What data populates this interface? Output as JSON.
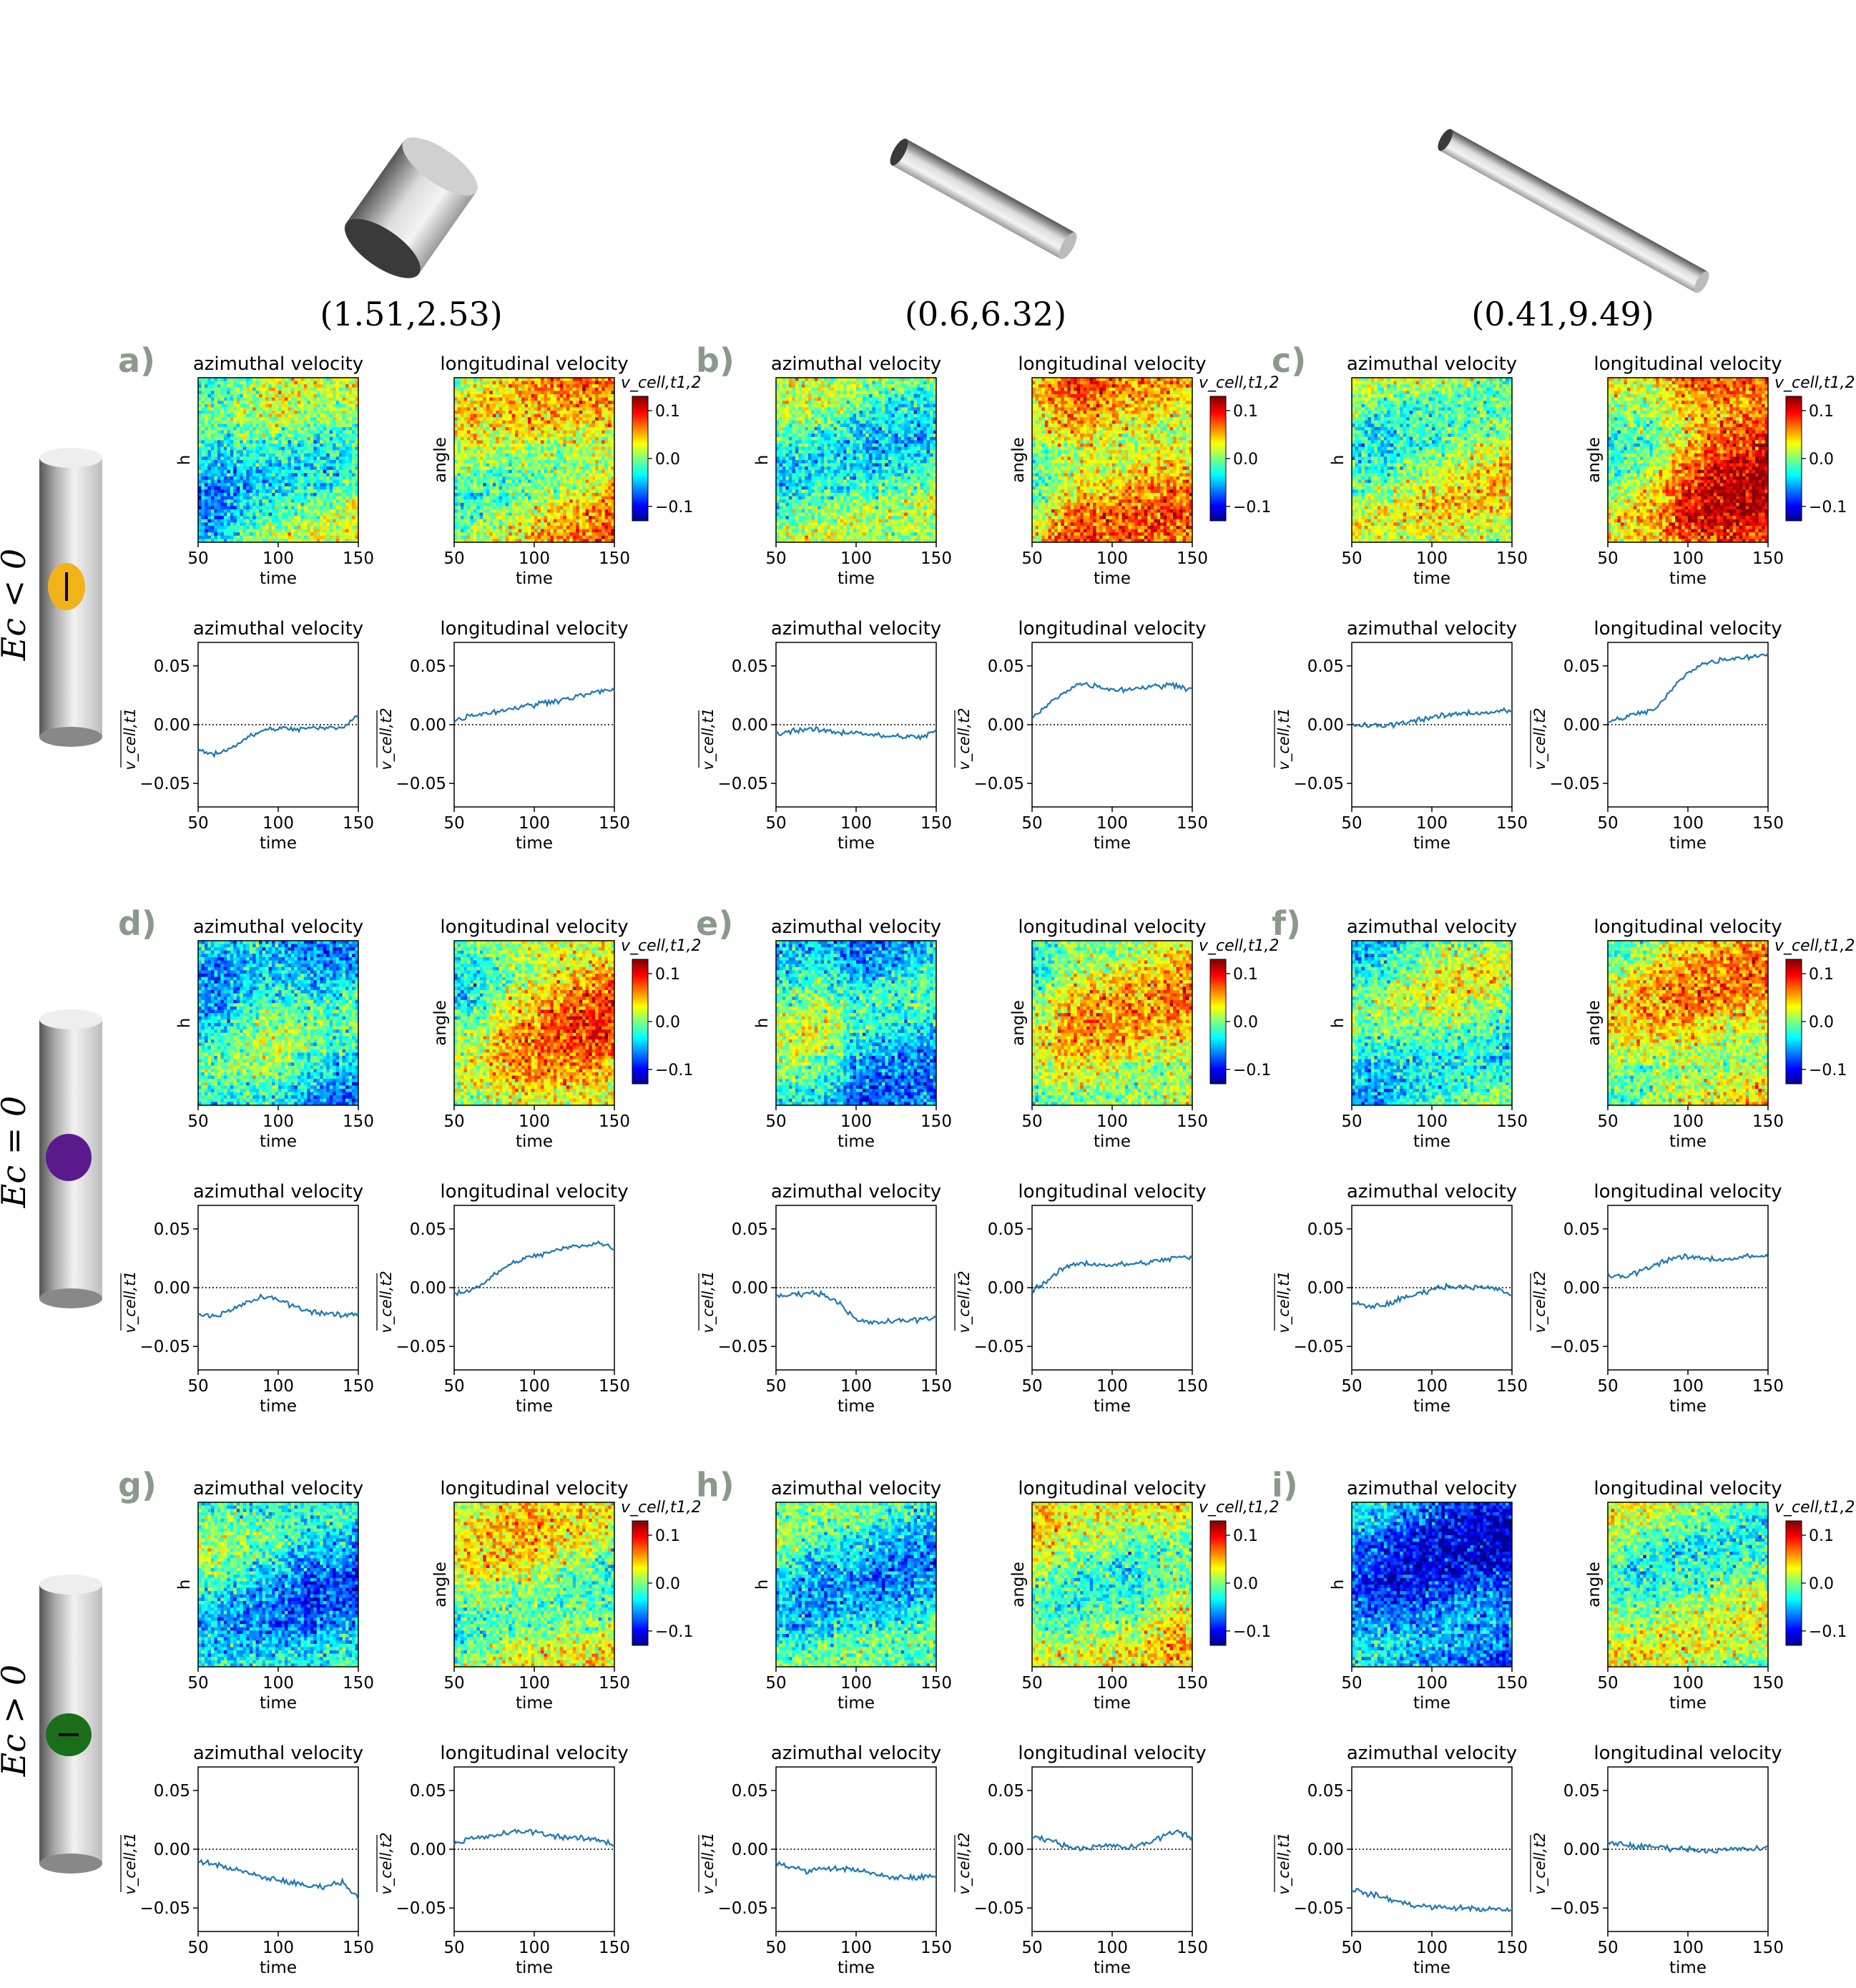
{
  "geometry_labels": [
    "(1.51,2.53)",
    "(0.6,6.32)",
    "(0.41,9.49)"
  ],
  "row_labels": [
    "Ec < 0",
    "Ec = 0",
    "Ec > 0"
  ],
  "panel_letters": [
    "a)",
    "b)",
    "c)",
    "d)",
    "e)",
    "f)",
    "g)",
    "h)",
    "i)"
  ],
  "colors": {
    "line": "#1f77b4",
    "letters": "#8a9a8a",
    "dot_ec_neg": "#f2b21a",
    "dot_ec_zero": "#5a1a8c",
    "dot_ec_pos": "#1a6e1a"
  },
  "chart_data": {
    "type": "heatmap+line",
    "titles": {
      "azimuthal": "azimuthal velocity",
      "longitudinal": "longitudinal velocity"
    },
    "heatmap": {
      "xlabel": "time",
      "ylabel_azimuthal": "h",
      "ylabel_longitudinal": "angle",
      "xticks": [
        50,
        100,
        150
      ],
      "xlim": [
        50,
        150
      ],
      "colormap": "jet",
      "clim": [
        -0.13,
        0.13
      ],
      "colorbar_label": "v_cell,t1,2",
      "colorbar_ticks": [
        "0.1",
        "0.0",
        "−0.1"
      ]
    },
    "line": {
      "xlabel": "time",
      "ylabel_azimuthal": "v_cell,t1",
      "ylabel_longitudinal": "v_cell,t2",
      "xticks": [
        50,
        100,
        150
      ],
      "yticks": [
        "0.05",
        "0.00",
        "−0.05"
      ],
      "xlim": [
        50,
        150
      ],
      "ylim": [
        -0.07,
        0.07
      ],
      "zero_line": "dotted"
    },
    "panels": [
      {
        "id": "a",
        "az_mean": [
          [
            50,
            -0.022
          ],
          [
            60,
            -0.025
          ],
          [
            70,
            -0.02
          ],
          [
            80,
            -0.012
          ],
          [
            90,
            -0.005
          ],
          [
            100,
            -0.003
          ],
          [
            110,
            -0.004
          ],
          [
            120,
            -0.003
          ],
          [
            130,
            -0.003
          ],
          [
            140,
            -0.002
          ],
          [
            150,
            0.008
          ]
        ],
        "lo_mean": [
          [
            50,
            0.003
          ],
          [
            60,
            0.008
          ],
          [
            70,
            0.01
          ],
          [
            80,
            0.012
          ],
          [
            90,
            0.015
          ],
          [
            100,
            0.017
          ],
          [
            110,
            0.02
          ],
          [
            120,
            0.022
          ],
          [
            130,
            0.025
          ],
          [
            140,
            0.028
          ],
          [
            150,
            0.03
          ]
        ]
      },
      {
        "id": "b",
        "az_mean": [
          [
            50,
            -0.008
          ],
          [
            60,
            -0.005
          ],
          [
            70,
            -0.004
          ],
          [
            80,
            -0.005
          ],
          [
            90,
            -0.007
          ],
          [
            100,
            -0.006
          ],
          [
            110,
            -0.009
          ],
          [
            120,
            -0.01
          ],
          [
            130,
            -0.01
          ],
          [
            140,
            -0.011
          ],
          [
            150,
            -0.005
          ]
        ],
        "lo_mean": [
          [
            50,
            0.005
          ],
          [
            60,
            0.017
          ],
          [
            70,
            0.028
          ],
          [
            80,
            0.035
          ],
          [
            90,
            0.033
          ],
          [
            100,
            0.03
          ],
          [
            110,
            0.03
          ],
          [
            120,
            0.032
          ],
          [
            130,
            0.033
          ],
          [
            140,
            0.034
          ],
          [
            150,
            0.03
          ]
        ]
      },
      {
        "id": "c",
        "az_mean": [
          [
            50,
            0.0
          ],
          [
            60,
            -0.001
          ],
          [
            70,
            -0.001
          ],
          [
            80,
            0.001
          ],
          [
            90,
            0.004
          ],
          [
            100,
            0.006
          ],
          [
            110,
            0.008
          ],
          [
            120,
            0.01
          ],
          [
            130,
            0.01
          ],
          [
            140,
            0.011
          ],
          [
            150,
            0.012
          ]
        ],
        "lo_mean": [
          [
            50,
            0.002
          ],
          [
            60,
            0.006
          ],
          [
            70,
            0.01
          ],
          [
            80,
            0.013
          ],
          [
            90,
            0.03
          ],
          [
            100,
            0.045
          ],
          [
            110,
            0.052
          ],
          [
            120,
            0.055
          ],
          [
            130,
            0.057
          ],
          [
            140,
            0.058
          ],
          [
            150,
            0.06
          ]
        ]
      },
      {
        "id": "d",
        "az_mean": [
          [
            50,
            -0.022
          ],
          [
            60,
            -0.024
          ],
          [
            70,
            -0.02
          ],
          [
            80,
            -0.013
          ],
          [
            90,
            -0.008
          ],
          [
            100,
            -0.01
          ],
          [
            110,
            -0.016
          ],
          [
            120,
            -0.02
          ],
          [
            130,
            -0.022
          ],
          [
            140,
            -0.024
          ],
          [
            150,
            -0.022
          ]
        ],
        "lo_mean": [
          [
            50,
            -0.005
          ],
          [
            60,
            -0.002
          ],
          [
            70,
            0.005
          ],
          [
            80,
            0.016
          ],
          [
            90,
            0.023
          ],
          [
            100,
            0.027
          ],
          [
            110,
            0.03
          ],
          [
            120,
            0.034
          ],
          [
            130,
            0.036
          ],
          [
            140,
            0.038
          ],
          [
            150,
            0.034
          ]
        ]
      },
      {
        "id": "e",
        "az_mean": [
          [
            50,
            -0.008
          ],
          [
            60,
            -0.006
          ],
          [
            70,
            -0.004
          ],
          [
            80,
            -0.006
          ],
          [
            90,
            -0.013
          ],
          [
            100,
            -0.028
          ],
          [
            110,
            -0.03
          ],
          [
            120,
            -0.029
          ],
          [
            130,
            -0.028
          ],
          [
            140,
            -0.027
          ],
          [
            150,
            -0.025
          ]
        ],
        "lo_mean": [
          [
            50,
            -0.002
          ],
          [
            60,
            0.006
          ],
          [
            70,
            0.017
          ],
          [
            80,
            0.021
          ],
          [
            90,
            0.02
          ],
          [
            100,
            0.019
          ],
          [
            110,
            0.02
          ],
          [
            120,
            0.021
          ],
          [
            130,
            0.023
          ],
          [
            140,
            0.026
          ],
          [
            150,
            0.025
          ]
        ]
      },
      {
        "id": "f",
        "az_mean": [
          [
            50,
            -0.013
          ],
          [
            60,
            -0.016
          ],
          [
            70,
            -0.015
          ],
          [
            80,
            -0.01
          ],
          [
            90,
            -0.006
          ],
          [
            100,
            -0.001
          ],
          [
            110,
            0.001
          ],
          [
            120,
            0.001
          ],
          [
            130,
            0.0
          ],
          [
            140,
            -0.001
          ],
          [
            150,
            -0.006
          ]
        ],
        "lo_mean": [
          [
            50,
            0.01
          ],
          [
            60,
            0.009
          ],
          [
            70,
            0.014
          ],
          [
            80,
            0.02
          ],
          [
            90,
            0.025
          ],
          [
            100,
            0.026
          ],
          [
            110,
            0.025
          ],
          [
            120,
            0.024
          ],
          [
            130,
            0.025
          ],
          [
            140,
            0.027
          ],
          [
            150,
            0.026
          ]
        ]
      },
      {
        "id": "g",
        "az_mean": [
          [
            50,
            -0.01
          ],
          [
            60,
            -0.013
          ],
          [
            70,
            -0.016
          ],
          [
            80,
            -0.02
          ],
          [
            90,
            -0.024
          ],
          [
            100,
            -0.026
          ],
          [
            110,
            -0.029
          ],
          [
            120,
            -0.032
          ],
          [
            130,
            -0.031
          ],
          [
            140,
            -0.028
          ],
          [
            150,
            -0.041
          ]
        ],
        "lo_mean": [
          [
            50,
            0.005
          ],
          [
            60,
            0.009
          ],
          [
            70,
            0.01
          ],
          [
            80,
            0.013
          ],
          [
            90,
            0.015
          ],
          [
            100,
            0.015
          ],
          [
            110,
            0.012
          ],
          [
            120,
            0.01
          ],
          [
            130,
            0.009
          ],
          [
            140,
            0.008
          ],
          [
            150,
            0.004
          ]
        ]
      },
      {
        "id": "h",
        "az_mean": [
          [
            50,
            -0.012
          ],
          [
            60,
            -0.015
          ],
          [
            70,
            -0.019
          ],
          [
            80,
            -0.016
          ],
          [
            90,
            -0.017
          ],
          [
            100,
            -0.017
          ],
          [
            110,
            -0.021
          ],
          [
            120,
            -0.024
          ],
          [
            130,
            -0.024
          ],
          [
            140,
            -0.024
          ],
          [
            150,
            -0.023
          ]
        ],
        "lo_mean": [
          [
            50,
            0.01
          ],
          [
            60,
            0.009
          ],
          [
            70,
            0.003
          ],
          [
            80,
            0.001
          ],
          [
            90,
            0.002
          ],
          [
            100,
            0.003
          ],
          [
            110,
            0.001
          ],
          [
            120,
            0.004
          ],
          [
            130,
            0.01
          ],
          [
            140,
            0.016
          ],
          [
            150,
            0.01
          ]
        ]
      },
      {
        "id": "i",
        "az_mean": [
          [
            50,
            -0.034
          ],
          [
            60,
            -0.038
          ],
          [
            70,
            -0.041
          ],
          [
            80,
            -0.045
          ],
          [
            90,
            -0.048
          ],
          [
            100,
            -0.049
          ],
          [
            110,
            -0.05
          ],
          [
            120,
            -0.05
          ],
          [
            130,
            -0.051
          ],
          [
            140,
            -0.051
          ],
          [
            150,
            -0.053
          ]
        ],
        "lo_mean": [
          [
            50,
            0.006
          ],
          [
            60,
            0.004
          ],
          [
            70,
            0.002
          ],
          [
            80,
            0.002
          ],
          [
            90,
            0.001
          ],
          [
            100,
            0.0
          ],
          [
            110,
            -0.001
          ],
          [
            120,
            -0.001
          ],
          [
            130,
            0.0
          ],
          [
            140,
            0.0
          ],
          [
            150,
            0.001
          ]
        ]
      }
    ]
  }
}
